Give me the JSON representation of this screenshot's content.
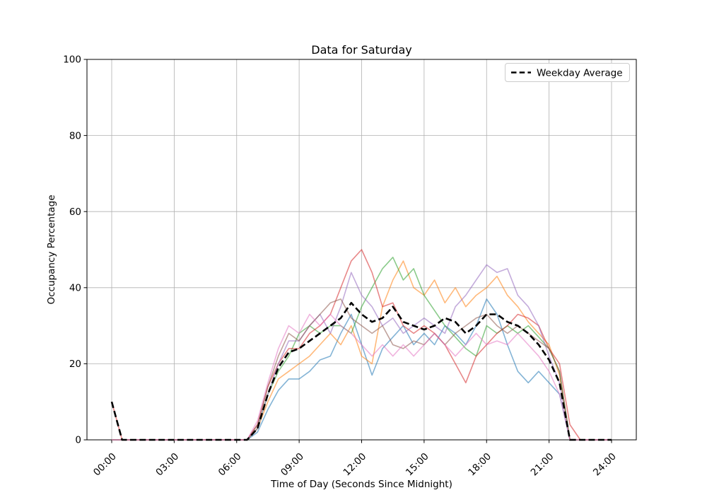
{
  "chart_data": {
    "type": "line",
    "title": "Data for Saturday",
    "xlabel": "Time of Day (Seconds Since Midnight)",
    "ylabel": "Occupancy Percentage",
    "ylim": [
      0,
      100
    ],
    "x_range_hours": [
      0,
      24
    ],
    "x_start_hour": 0,
    "x_step_hours": 0.5,
    "grid": true,
    "grid_color": "#b0b0b0",
    "background_color": "#ffffff",
    "legend": {
      "label": "Weekday Average",
      "position": "upper-right",
      "color": "#000000",
      "dashed": true
    },
    "x_ticks": [
      {
        "hour": 0,
        "label": "00:00"
      },
      {
        "hour": 3,
        "label": "03:00"
      },
      {
        "hour": 6,
        "label": "06:00"
      },
      {
        "hour": 9,
        "label": "09:00"
      },
      {
        "hour": 12,
        "label": "12:00"
      },
      {
        "hour": 15,
        "label": "15:00"
      },
      {
        "hour": 18,
        "label": "18:00"
      },
      {
        "hour": 21,
        "label": "21:00"
      },
      {
        "hour": 24,
        "label": "24:00"
      }
    ],
    "y_ticks": [
      {
        "value": 0,
        "label": "0"
      },
      {
        "value": 20,
        "label": "20"
      },
      {
        "value": 40,
        "label": "40"
      },
      {
        "value": 60,
        "label": "60"
      },
      {
        "value": 80,
        "label": "80"
      },
      {
        "value": 100,
        "label": "100"
      }
    ],
    "series": [
      {
        "name": "data-line-1",
        "color": "#1f77b4",
        "opacity": 0.55,
        "width": 1.6,
        "dash": null,
        "values": [
          0,
          0,
          0,
          0,
          0,
          0,
          0,
          0,
          0,
          0,
          0,
          0,
          0,
          0,
          2,
          8,
          13,
          16,
          16,
          18,
          21,
          22,
          28,
          33,
          25,
          17,
          24,
          27,
          30,
          25,
          28,
          25,
          30,
          28,
          25,
          30,
          37,
          33,
          25,
          18,
          15,
          18,
          15,
          12,
          0,
          0,
          0,
          0,
          0
        ]
      },
      {
        "name": "data-line-2",
        "color": "#ff7f0e",
        "opacity": 0.55,
        "width": 1.6,
        "dash": null,
        "values": [
          0,
          0,
          0,
          0,
          0,
          0,
          0,
          0,
          0,
          0,
          0,
          0,
          0,
          0,
          3,
          10,
          16,
          18,
          20,
          22,
          25,
          28,
          25,
          30,
          22,
          20,
          35,
          42,
          47,
          40,
          38,
          42,
          36,
          40,
          35,
          38,
          40,
          43,
          38,
          35,
          31,
          28,
          25,
          17,
          0,
          0,
          0,
          0,
          0
        ]
      },
      {
        "name": "data-line-3",
        "color": "#2ca02c",
        "opacity": 0.55,
        "width": 1.6,
        "dash": null,
        "values": [
          0,
          0,
          0,
          0,
          0,
          0,
          0,
          0,
          0,
          0,
          0,
          0,
          0,
          0,
          3,
          12,
          18,
          22,
          28,
          30,
          28,
          30,
          30,
          28,
          35,
          40,
          45,
          48,
          42,
          45,
          38,
          34,
          30,
          27,
          24,
          22,
          30,
          28,
          30,
          28,
          30,
          27,
          24,
          18,
          0,
          0,
          0,
          0,
          0
        ]
      },
      {
        "name": "data-line-4",
        "color": "#d62728",
        "opacity": 0.55,
        "width": 1.6,
        "dash": null,
        "values": [
          10,
          0,
          0,
          0,
          0,
          0,
          0,
          0,
          0,
          0,
          0,
          0,
          0,
          0,
          4,
          14,
          20,
          24,
          24,
          28,
          30,
          33,
          40,
          47,
          50,
          44,
          35,
          36,
          30,
          28,
          30,
          28,
          25,
          20,
          15,
          22,
          25,
          28,
          30,
          33,
          32,
          30,
          24,
          20,
          4,
          0,
          0,
          0,
          0
        ]
      },
      {
        "name": "data-line-5",
        "color": "#9467bd",
        "opacity": 0.55,
        "width": 1.6,
        "dash": null,
        "values": [
          0,
          0,
          0,
          0,
          0,
          0,
          0,
          0,
          0,
          0,
          0,
          0,
          0,
          0,
          3,
          12,
          20,
          26,
          26,
          30,
          33,
          28,
          35,
          44,
          38,
          35,
          30,
          32,
          28,
          30,
          32,
          30,
          28,
          35,
          38,
          42,
          46,
          44,
          45,
          38,
          35,
          30,
          22,
          15,
          0,
          0,
          0,
          0,
          0
        ]
      },
      {
        "name": "data-line-6",
        "color": "#8c564b",
        "opacity": 0.55,
        "width": 1.6,
        "dash": null,
        "values": [
          0,
          0,
          0,
          0,
          0,
          0,
          0,
          0,
          0,
          0,
          0,
          0,
          0,
          0,
          4,
          14,
          22,
          28,
          26,
          30,
          33,
          36,
          37,
          32,
          30,
          28,
          30,
          25,
          24,
          26,
          25,
          28,
          25,
          28,
          30,
          32,
          33,
          30,
          28,
          30,
          28,
          26,
          24,
          18,
          0,
          0,
          0,
          0,
          0
        ]
      },
      {
        "name": "data-line-7",
        "color": "#e377c2",
        "opacity": 0.55,
        "width": 1.6,
        "dash": null,
        "values": [
          0,
          0,
          0,
          0,
          0,
          0,
          0,
          0,
          0,
          0,
          0,
          0,
          0,
          0,
          5,
          15,
          24,
          30,
          28,
          33,
          30,
          33,
          30,
          28,
          25,
          22,
          25,
          22,
          25,
          22,
          25,
          28,
          25,
          22,
          25,
          28,
          25,
          26,
          25,
          28,
          25,
          22,
          18,
          12,
          0,
          0,
          0,
          0,
          0
        ]
      },
      {
        "name": "weekday-average",
        "label": "Weekday Average",
        "color": "#000000",
        "opacity": 1,
        "width": 2.6,
        "dash": "9 4.4",
        "values": [
          10,
          0,
          0,
          0,
          0,
          0,
          0,
          0,
          0,
          0,
          0,
          0,
          0,
          0,
          3,
          12,
          19,
          23,
          24,
          26,
          28,
          30,
          32,
          36,
          33,
          31,
          32,
          35,
          31,
          30,
          29,
          30,
          32,
          31,
          28,
          30,
          33,
          33,
          31,
          30,
          28,
          25,
          21,
          15,
          0,
          0,
          0,
          0,
          0
        ]
      }
    ]
  }
}
